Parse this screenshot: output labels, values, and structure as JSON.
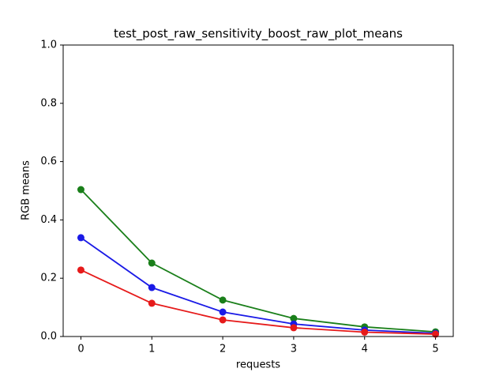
{
  "chart_data": {
    "type": "line",
    "title": "test_post_raw_sensitivity_boost_raw_plot_means",
    "xlabel": "requests",
    "ylabel": "RGB means",
    "x": [
      0,
      1,
      2,
      3,
      4,
      5
    ],
    "series": [
      {
        "color": "#1a7f1a",
        "values": [
          0.504,
          0.252,
          0.125,
          0.062,
          0.033,
          0.016
        ]
      },
      {
        "color": "#1a1ae6",
        "values": [
          0.339,
          0.168,
          0.084,
          0.043,
          0.022,
          0.011
        ]
      },
      {
        "color": "#e61a1a",
        "values": [
          0.228,
          0.114,
          0.057,
          0.03,
          0.015,
          0.008
        ]
      }
    ],
    "xlim": [
      -0.25,
      5.25
    ],
    "xticks": [
      0,
      1,
      2,
      3,
      4,
      5
    ],
    "ylim": [
      0,
      1
    ],
    "yticks": [
      {
        "value": 0,
        "label": "0.0"
      },
      {
        "value": 0.2,
        "label": "0.2"
      },
      {
        "value": 0.4,
        "label": "0.4"
      },
      {
        "value": 0.6,
        "label": "0.6"
      },
      {
        "value": 0.8,
        "label": "0.8"
      },
      {
        "value": 1,
        "label": "1.0"
      }
    ]
  }
}
